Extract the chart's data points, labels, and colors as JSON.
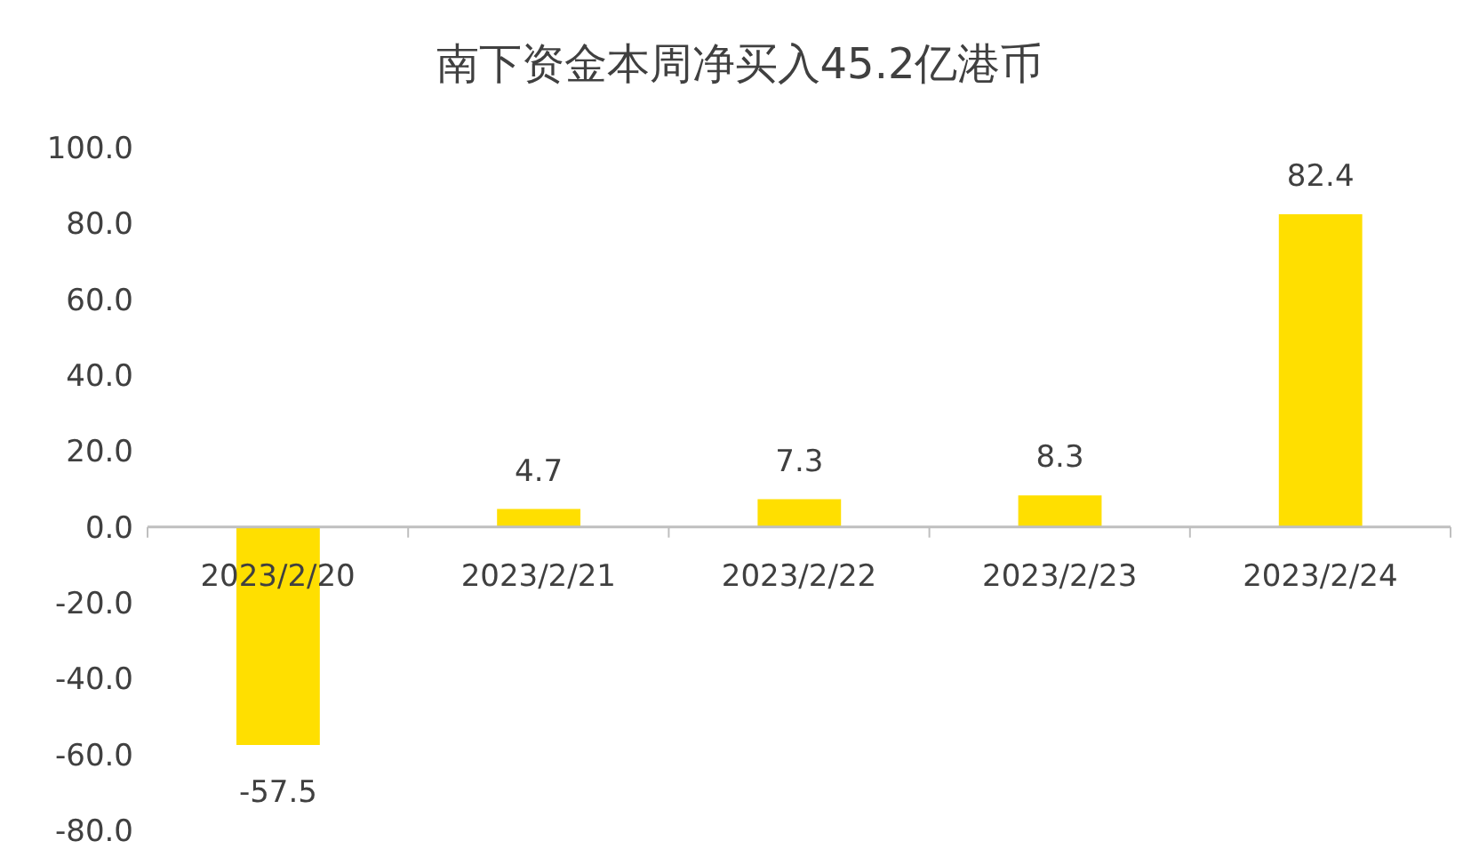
{
  "chart_data": {
    "type": "bar",
    "title": "南下资金本周净买入45.2亿港币",
    "categories": [
      "2023/2/20",
      "2023/2/21",
      "2023/2/22",
      "2023/2/23",
      "2023/2/24"
    ],
    "values": [
      -57.5,
      4.7,
      7.3,
      8.3,
      82.4
    ],
    "color": "#ffdf00",
    "ylim": [
      -80,
      100
    ],
    "yticks": [
      {
        "value": -80,
        "label": "-80.0"
      },
      {
        "value": -60,
        "label": "-60.0"
      },
      {
        "value": -40,
        "label": "-40.0"
      },
      {
        "value": -20,
        "label": "-20.0"
      },
      {
        "value": 0,
        "label": "0.0"
      },
      {
        "value": 20,
        "label": "20.0"
      },
      {
        "value": 40,
        "label": "40.0"
      },
      {
        "value": 60,
        "label": "60.0"
      },
      {
        "value": 80,
        "label": "80.0"
      },
      {
        "value": 100,
        "label": "100.0"
      }
    ],
    "data_labels": true,
    "grid": false,
    "legend": false
  }
}
